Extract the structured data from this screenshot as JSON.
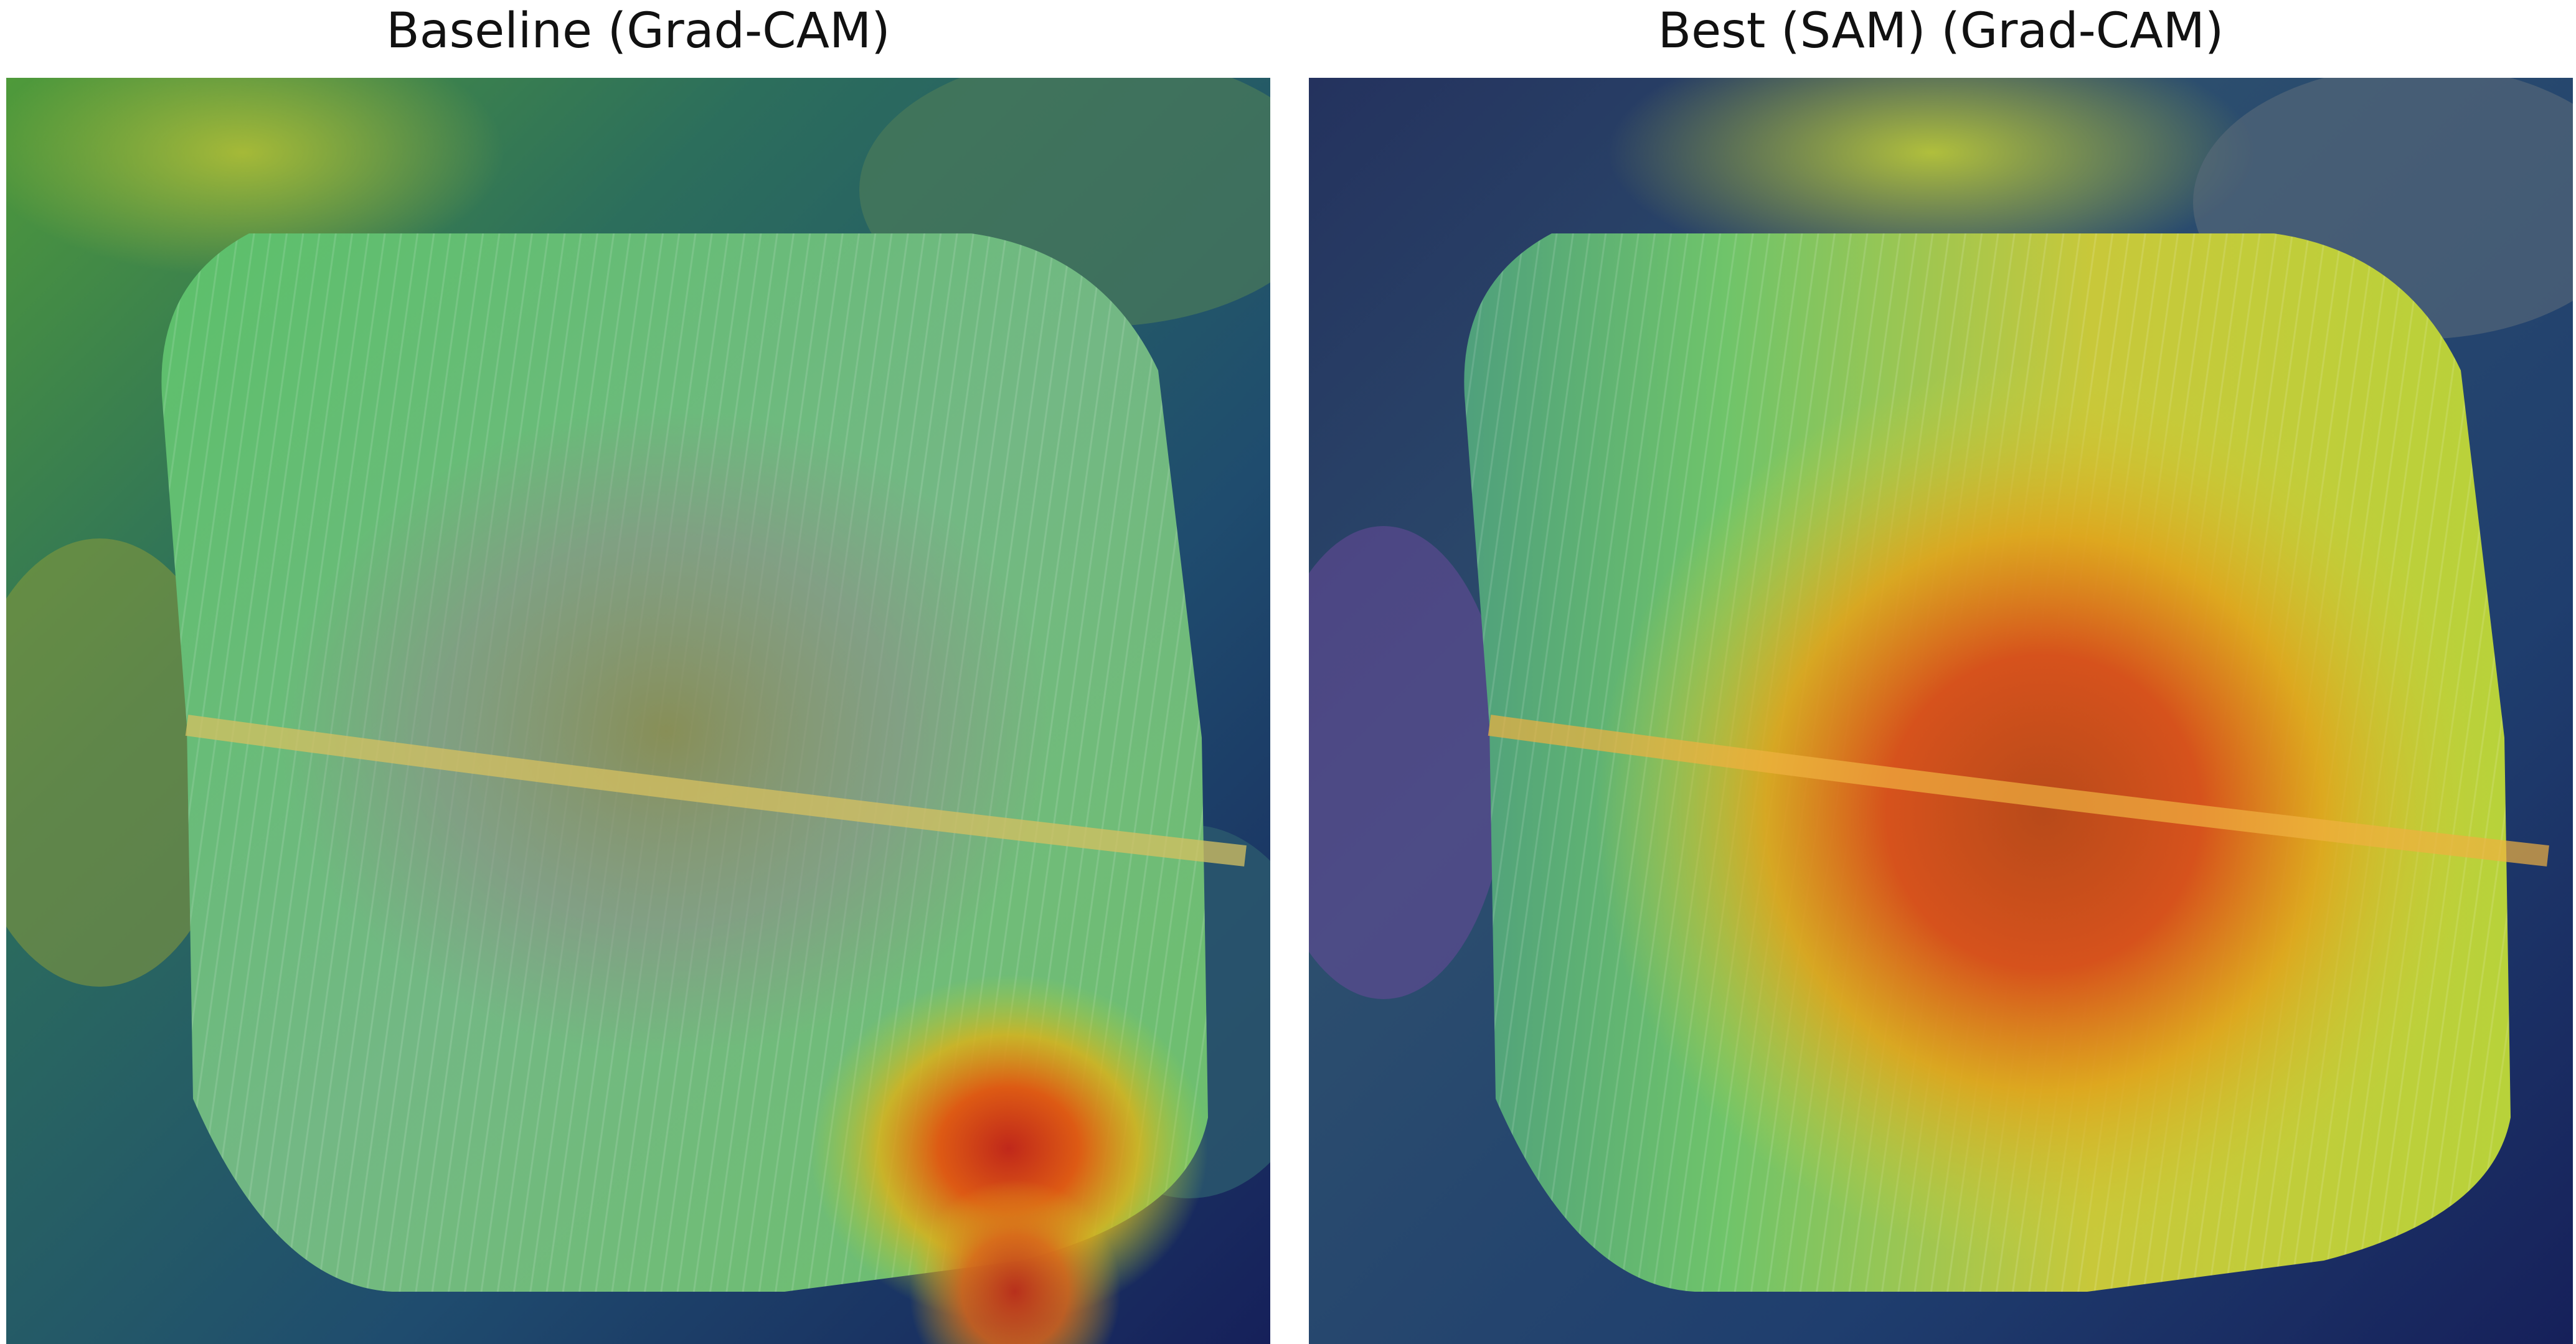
{
  "panels": [
    {
      "title": "Baseline (Grad-CAM)",
      "image": "gradcam-heatmap-overlay-banana-leaf"
    },
    {
      "title": "Best (SAM) (Grad-CAM)",
      "image": "gradcam-heatmap-overlay-banana-leaf"
    }
  ],
  "colors": {
    "leaf": "#62c26a",
    "heat_high": "#d63a12",
    "heat_mid": "#e0c41a",
    "background_dark": "#16205a"
  }
}
